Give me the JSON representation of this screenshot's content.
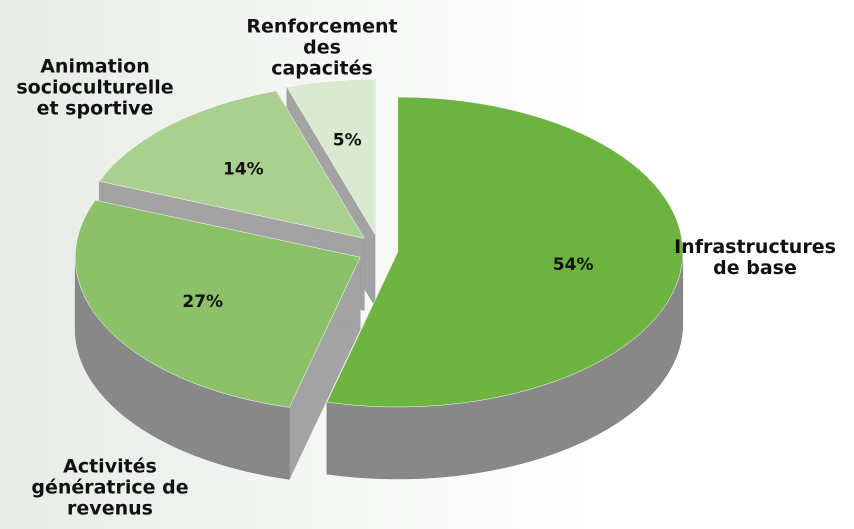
{
  "chart_data": {
    "type": "pie",
    "categories": [
      "Infrastructures\nde base",
      "Activités\ngénératrice de\nrevenus",
      "Animation\nsocioculturelle\net sportive",
      "Renforcement\ndes\ncapacités"
    ],
    "values": [
      54,
      27,
      14,
      5
    ],
    "value_labels": [
      "54%",
      "27%",
      "14%",
      "5%"
    ],
    "colors": [
      "#6db33f",
      "#8cc16a",
      "#a9d08e",
      "#d9ead0"
    ]
  }
}
